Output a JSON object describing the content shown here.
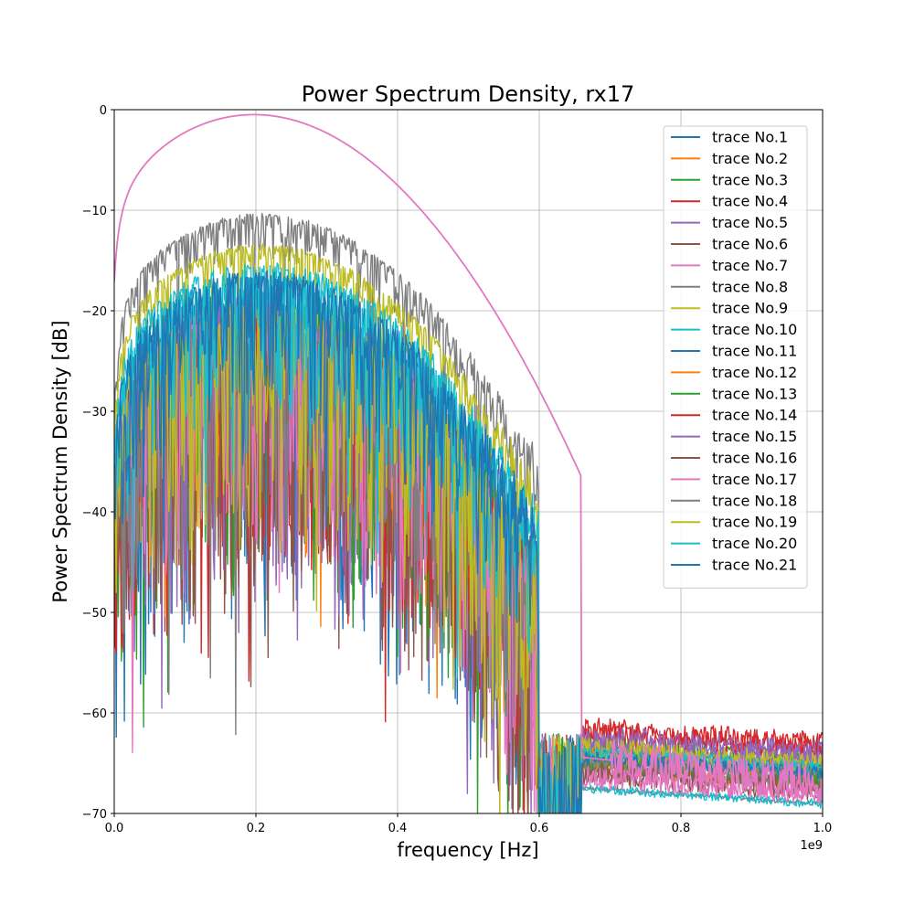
{
  "chart_data": {
    "type": "line",
    "title": "Power Spectrum Density, rx17",
    "xlabel": "frequency [Hz]",
    "ylabel": "Power Spectrum Density [dB]",
    "x_offset_text": "1e9",
    "xlim": [
      0,
      1.0
    ],
    "ylim": [
      -70,
      0
    ],
    "x_ticks": [
      "0.0",
      "0.2",
      "0.4",
      "0.6",
      "0.8",
      "1.0"
    ],
    "y_ticks": [
      "0",
      "−10",
      "−20",
      "−30",
      "−40",
      "−50",
      "−60",
      "−70"
    ],
    "grid": true,
    "legend_position": "top-right",
    "series": [
      {
        "name": "trace No.1",
        "color": "#1f77b4",
        "peak": -18,
        "tail": -66,
        "noise": 7
      },
      {
        "name": "trace No.2",
        "color": "#ff7f0e",
        "peak": -21,
        "tail": -67,
        "noise": 4
      },
      {
        "name": "trace No.3",
        "color": "#2ca02c",
        "peak": -19,
        "tail": -65,
        "noise": 6
      },
      {
        "name": "trace No.4",
        "color": "#d62728",
        "peak": -20,
        "tail": -63,
        "noise": 5
      },
      {
        "name": "trace No.5",
        "color": "#9467bd",
        "peak": -19,
        "tail": -64.5,
        "noise": 6
      },
      {
        "name": "trace No.6",
        "color": "#8c564b",
        "peak": -20,
        "tail": -67,
        "noise": 6
      },
      {
        "name": "trace No.7",
        "color": "#e377c2",
        "peak": 0,
        "tail": -67,
        "noise": 0
      },
      {
        "name": "trace No.8",
        "color": "#7f7f7f",
        "peak": -10,
        "tail": -69,
        "noise": 1
      },
      {
        "name": "trace No.9",
        "color": "#bcbd22",
        "peak": -13,
        "tail": -65,
        "noise": 1
      },
      {
        "name": "trace No.10",
        "color": "#17becf",
        "peak": -15,
        "tail": -69,
        "noise": 2
      },
      {
        "name": "trace No.11",
        "color": "#1f77b4",
        "peak": -16,
        "tail": -65.5,
        "noise": 3
      },
      {
        "name": "trace No.12",
        "color": "#ff7f0e",
        "peak": -21,
        "tail": -66,
        "noise": 4
      },
      {
        "name": "trace No.13",
        "color": "#2ca02c",
        "peak": -20,
        "tail": -66.5,
        "noise": 5
      },
      {
        "name": "trace No.14",
        "color": "#d62728",
        "peak": -20,
        "tail": -63.5,
        "noise": 5
      },
      {
        "name": "trace No.15",
        "color": "#9467bd",
        "peak": -19,
        "tail": -64,
        "noise": 6
      },
      {
        "name": "trace No.16",
        "color": "#8c564b",
        "peak": -20,
        "tail": -67.5,
        "noise": 6
      },
      {
        "name": "trace No.17",
        "color": "#e377c2",
        "peak": -20,
        "tail": -68,
        "noise": 5
      },
      {
        "name": "trace No.18",
        "color": "#7f7f7f",
        "peak": -20,
        "tail": -66,
        "noise": 5
      },
      {
        "name": "trace No.19",
        "color": "#bcbd22",
        "peak": -19,
        "tail": -65,
        "noise": 5
      },
      {
        "name": "trace No.20",
        "color": "#17becf",
        "peak": -16,
        "tail": -65.5,
        "noise": 3
      },
      {
        "name": "trace No.21",
        "color": "#1f77b4",
        "peak": -16,
        "tail": -66,
        "noise": 3
      }
    ]
  }
}
